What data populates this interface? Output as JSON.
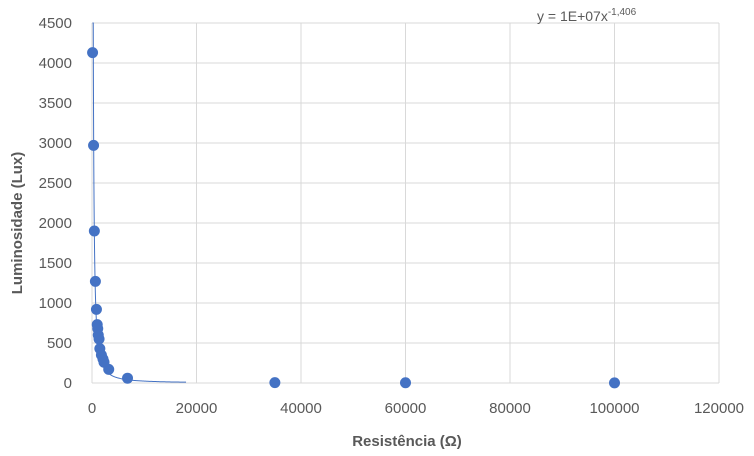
{
  "chart_data": {
    "type": "scatter",
    "xlabel": "Resistência (Ω)",
    "ylabel": "Luminosidade (Lux)",
    "xlim": [
      0,
      120000
    ],
    "ylim": [
      0,
      4500
    ],
    "xticks": [
      "0",
      "20000",
      "40000",
      "60000",
      "80000",
      "100000",
      "120000"
    ],
    "yticks": [
      "0",
      "500",
      "1000",
      "1500",
      "2000",
      "2500",
      "3000",
      "3500",
      "4000",
      "4500"
    ],
    "grid": true,
    "marker_color": "#4472C4",
    "line_color": "#4472C4",
    "series": [
      {
        "points": [
          {
            "x": 110,
            "y": 4130
          },
          {
            "x": 300,
            "y": 2970
          },
          {
            "x": 450,
            "y": 1900
          },
          {
            "x": 650,
            "y": 1270
          },
          {
            "x": 850,
            "y": 920
          },
          {
            "x": 1000,
            "y": 730
          },
          {
            "x": 1100,
            "y": 680
          },
          {
            "x": 1200,
            "y": 600
          },
          {
            "x": 1350,
            "y": 550
          },
          {
            "x": 1500,
            "y": 430
          },
          {
            "x": 1800,
            "y": 350
          },
          {
            "x": 2100,
            "y": 300
          },
          {
            "x": 2300,
            "y": 260
          },
          {
            "x": 3200,
            "y": 170
          },
          {
            "x": 6800,
            "y": 60
          },
          {
            "x": 35000,
            "y": 5
          },
          {
            "x": 60000,
            "y": 3
          },
          {
            "x": 100000,
            "y": 2
          }
        ]
      }
    ],
    "trendline": {
      "type": "power",
      "coefficient": 10000000,
      "exponent": -1.406,
      "x_range": [
        100,
        18000
      ],
      "equation_base": "y = 1E+07x",
      "equation_exponent": "-1,406"
    }
  }
}
